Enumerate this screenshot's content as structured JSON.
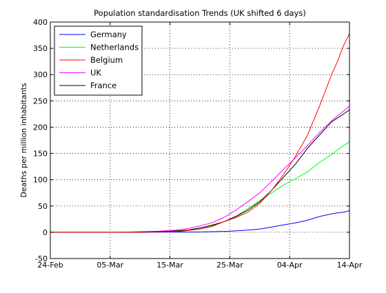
{
  "chart_data": {
    "type": "line",
    "title": "Population standardisation Trends (UK shifted 6 days)",
    "xlabel": "",
    "ylabel": "Deaths per million inhabitants",
    "xlim": [
      "2020-02-24",
      "2020-04-14"
    ],
    "ylim": [
      -50,
      400
    ],
    "x_ticks": [
      "24-Feb",
      "05-Mar",
      "15-Mar",
      "25-Mar",
      "04-Apr",
      "14-Apr"
    ],
    "y_ticks": [
      -50,
      0,
      50,
      100,
      150,
      200,
      250,
      300,
      350,
      400
    ],
    "grid": true,
    "grid_style": "dotted",
    "legend_position": "top-left",
    "series": [
      {
        "name": "Germany",
        "color": "#0000ff",
        "points": [
          [
            "2020-02-24",
            0
          ],
          [
            "2020-03-10",
            0
          ],
          [
            "2020-03-20",
            0.5
          ],
          [
            "2020-03-25",
            2
          ],
          [
            "2020-03-28",
            4
          ],
          [
            "2020-03-30",
            6
          ],
          [
            "2020-04-01",
            10
          ],
          [
            "2020-04-03",
            14
          ],
          [
            "2020-04-05",
            18
          ],
          [
            "2020-04-07",
            23
          ],
          [
            "2020-04-09",
            30
          ],
          [
            "2020-04-11",
            35
          ],
          [
            "2020-04-12",
            37
          ],
          [
            "2020-04-13",
            38
          ],
          [
            "2020-04-14",
            41
          ]
        ]
      },
      {
        "name": "Netherlands",
        "color": "#00ff00",
        "points": [
          [
            "2020-02-24",
            0
          ],
          [
            "2020-03-08",
            0
          ],
          [
            "2020-03-12",
            1
          ],
          [
            "2020-03-15",
            2
          ],
          [
            "2020-03-18",
            4
          ],
          [
            "2020-03-20",
            8
          ],
          [
            "2020-03-22",
            14
          ],
          [
            "2020-03-24",
            20
          ],
          [
            "2020-03-26",
            30
          ],
          [
            "2020-03-28",
            45
          ],
          [
            "2020-03-30",
            60
          ],
          [
            "2020-04-01",
            75
          ],
          [
            "2020-04-03",
            90
          ],
          [
            "2020-04-05",
            102
          ],
          [
            "2020-04-07",
            115
          ],
          [
            "2020-04-09",
            133
          ],
          [
            "2020-04-11",
            148
          ],
          [
            "2020-04-13",
            165
          ],
          [
            "2020-04-14",
            172
          ]
        ]
      },
      {
        "name": "Belgium",
        "color": "#ff0000",
        "points": [
          [
            "2020-02-24",
            0
          ],
          [
            "2020-03-10",
            0
          ],
          [
            "2020-03-14",
            1
          ],
          [
            "2020-03-17",
            2
          ],
          [
            "2020-03-20",
            6
          ],
          [
            "2020-03-22",
            11
          ],
          [
            "2020-03-24",
            20
          ],
          [
            "2020-03-26",
            28
          ],
          [
            "2020-03-28",
            38
          ],
          [
            "2020-03-30",
            55
          ],
          [
            "2020-04-01",
            80
          ],
          [
            "2020-04-03",
            110
          ],
          [
            "2020-04-05",
            145
          ],
          [
            "2020-04-07",
            185
          ],
          [
            "2020-04-09",
            240
          ],
          [
            "2020-04-11",
            300
          ],
          [
            "2020-04-12",
            325
          ],
          [
            "2020-04-13",
            355
          ],
          [
            "2020-04-14",
            378
          ]
        ]
      },
      {
        "name": "UK",
        "color": "#ff00ff",
        "points": [
          [
            "2020-02-24",
            0
          ],
          [
            "2020-03-06",
            0
          ],
          [
            "2020-03-10",
            1
          ],
          [
            "2020-03-13",
            2
          ],
          [
            "2020-03-16",
            4
          ],
          [
            "2020-03-18",
            7
          ],
          [
            "2020-03-20",
            12
          ],
          [
            "2020-03-22",
            18
          ],
          [
            "2020-03-24",
            28
          ],
          [
            "2020-03-26",
            42
          ],
          [
            "2020-03-28",
            58
          ],
          [
            "2020-03-30",
            75
          ],
          [
            "2020-04-01",
            97
          ],
          [
            "2020-04-03",
            120
          ],
          [
            "2020-04-05",
            142
          ],
          [
            "2020-04-07",
            165
          ],
          [
            "2020-04-09",
            190
          ],
          [
            "2020-04-11",
            212
          ],
          [
            "2020-04-14",
            240
          ]
        ]
      },
      {
        "name": "France",
        "color": "#000000",
        "points": [
          [
            "2020-02-24",
            0
          ],
          [
            "2020-03-08",
            0
          ],
          [
            "2020-03-12",
            1
          ],
          [
            "2020-03-15",
            2
          ],
          [
            "2020-03-18",
            4
          ],
          [
            "2020-03-20",
            8
          ],
          [
            "2020-03-22",
            13
          ],
          [
            "2020-03-24",
            20
          ],
          [
            "2020-03-26",
            30
          ],
          [
            "2020-03-28",
            42
          ],
          [
            "2020-03-30",
            58
          ],
          [
            "2020-04-01",
            80
          ],
          [
            "2020-04-03",
            105
          ],
          [
            "2020-04-05",
            130
          ],
          [
            "2020-04-07",
            160
          ],
          [
            "2020-04-09",
            185
          ],
          [
            "2020-04-11",
            210
          ],
          [
            "2020-04-13",
            225
          ],
          [
            "2020-04-14",
            233
          ]
        ]
      }
    ]
  }
}
